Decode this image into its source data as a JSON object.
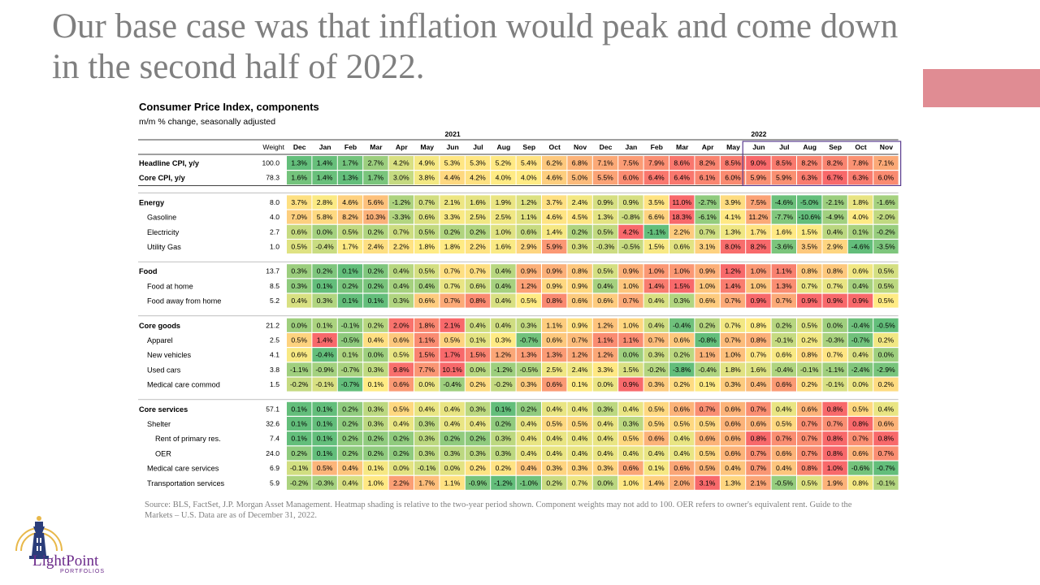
{
  "slide": {
    "title": "Our base case was that inflation would peak and come down in the second half of 2022.",
    "source": "Source: BLS, FactSet, J.P. Morgan Asset Management. Heatmap shading is relative to the two-year period shown. Component weights may not add to 100. OER refers to owner's equivalent rent. Guide to the Markets – U.S. Data are as of December 31, 2022.",
    "accent_color": "#e08c93",
    "logo": {
      "name": "LightPoint",
      "sub": "PORTFOLIOS",
      "color": "#6b2a8a"
    }
  },
  "chart_data": {
    "type": "table",
    "title": "Consumer Price Index, components",
    "subtitle": "m/m % change, seasonally adjusted",
    "weight_header": "Weight",
    "year_labels": [
      {
        "label": "2021",
        "col": 6
      },
      {
        "label": "2022",
        "col": 18
      }
    ],
    "months": [
      "Dec",
      "Jan",
      "Feb",
      "Mar",
      "Apr",
      "May",
      "Jun",
      "Jul",
      "Aug",
      "Sep",
      "Oct",
      "Nov",
      "Dec",
      "Jan",
      "Feb",
      "Mar",
      "Apr",
      "May",
      "Jun",
      "Jul",
      "Aug",
      "Sep",
      "Oct",
      "Nov"
    ],
    "highlight": {
      "from_col": 18,
      "to_col": 23,
      "rows": 2
    },
    "groups": [
      {
        "rows": [
          {
            "label": "Headline CPI, y/y",
            "weight": "100.0",
            "bold": true,
            "values": [
              1.3,
              1.4,
              1.7,
              2.7,
              4.2,
              4.9,
              5.3,
              5.3,
              5.2,
              5.4,
              6.2,
              6.8,
              7.1,
              7.5,
              7.9,
              8.6,
              8.2,
              8.5,
              9.0,
              8.5,
              8.2,
              8.2,
              7.8,
              7.1
            ]
          },
          {
            "label": "Core CPI, y/y",
            "weight": "78.3",
            "bold": true,
            "values": [
              1.6,
              1.4,
              1.3,
              1.7,
              3.0,
              3.8,
              4.4,
              4.2,
              4.0,
              4.0,
              4.6,
              5.0,
              5.5,
              6.0,
              6.4,
              6.4,
              6.1,
              6.0,
              5.9,
              5.9,
              6.3,
              6.7,
              6.3,
              6.0
            ]
          }
        ]
      },
      {
        "rows": [
          {
            "label": "Energy",
            "weight": "8.0",
            "bold": true,
            "indent": 0,
            "values": [
              3.7,
              2.8,
              4.6,
              5.6,
              -1.2,
              0.7,
              2.1,
              1.6,
              1.9,
              1.2,
              3.7,
              2.4,
              0.9,
              0.9,
              3.5,
              11.0,
              -2.7,
              3.9,
              7.5,
              -4.6,
              -5.0,
              -2.1,
              1.8,
              -1.6
            ]
          },
          {
            "label": "Gasoline",
            "weight": "4.0",
            "indent": 1,
            "values": [
              7.0,
              5.8,
              8.2,
              10.3,
              -3.3,
              0.6,
              3.3,
              2.5,
              2.5,
              1.1,
              4.6,
              4.5,
              1.3,
              -0.8,
              6.6,
              18.3,
              -6.1,
              4.1,
              11.2,
              -7.7,
              -10.6,
              -4.9,
              4.0,
              -2.0
            ]
          },
          {
            "label": "Electricity",
            "weight": "2.7",
            "indent": 1,
            "values": [
              0.6,
              0.0,
              0.5,
              0.2,
              0.7,
              0.5,
              0.2,
              0.2,
              1.0,
              0.6,
              1.4,
              0.2,
              0.5,
              4.2,
              -1.1,
              2.2,
              0.7,
              1.3,
              1.7,
              1.6,
              1.5,
              0.4,
              0.1,
              -0.2
            ]
          },
          {
            "label": "Utility Gas",
            "weight": "1.0",
            "indent": 1,
            "values": [
              0.5,
              -0.4,
              1.7,
              2.4,
              2.2,
              1.8,
              1.8,
              2.2,
              1.6,
              2.9,
              5.9,
              0.3,
              -0.3,
              -0.5,
              1.5,
              0.6,
              3.1,
              8.0,
              8.2,
              -3.6,
              3.5,
              2.9,
              -4.6,
              -3.5
            ]
          }
        ]
      },
      {
        "rows": [
          {
            "label": "Food",
            "weight": "13.7",
            "bold": true,
            "indent": 0,
            "values": [
              0.3,
              0.2,
              0.1,
              0.2,
              0.4,
              0.5,
              0.7,
              0.7,
              0.4,
              0.9,
              0.9,
              0.8,
              0.5,
              0.9,
              1.0,
              1.0,
              0.9,
              1.2,
              1.0,
              1.1,
              0.8,
              0.8,
              0.6,
              0.5
            ]
          },
          {
            "label": "Food at home",
            "weight": "8.5",
            "indent": 1,
            "values": [
              0.3,
              0.1,
              0.2,
              0.2,
              0.4,
              0.4,
              0.7,
              0.6,
              0.4,
              1.2,
              0.9,
              0.9,
              0.4,
              1.0,
              1.4,
              1.5,
              1.0,
              1.4,
              1.0,
              1.3,
              0.7,
              0.7,
              0.4,
              0.5
            ]
          },
          {
            "label": "Food away from home",
            "weight": "5.2",
            "indent": 1,
            "values": [
              0.4,
              0.3,
              0.1,
              0.1,
              0.3,
              0.6,
              0.7,
              0.8,
              0.4,
              0.5,
              0.8,
              0.6,
              0.6,
              0.7,
              0.4,
              0.3,
              0.6,
              0.7,
              0.9,
              0.7,
              0.9,
              0.9,
              0.9,
              0.5
            ]
          }
        ]
      },
      {
        "rows": [
          {
            "label": "Core goods",
            "weight": "21.2",
            "bold": true,
            "indent": 0,
            "values": [
              0.0,
              0.1,
              -0.1,
              0.2,
              2.0,
              1.8,
              2.1,
              0.4,
              0.4,
              0.3,
              1.1,
              0.9,
              1.2,
              1.0,
              0.4,
              -0.4,
              0.2,
              0.7,
              0.8,
              0.2,
              0.5,
              0.0,
              -0.4,
              -0.5
            ]
          },
          {
            "label": "Apparel",
            "weight": "2.5",
            "indent": 1,
            "values": [
              0.5,
              1.4,
              -0.5,
              0.4,
              0.6,
              1.1,
              0.5,
              0.1,
              0.3,
              -0.7,
              0.6,
              0.7,
              1.1,
              1.1,
              0.7,
              0.6,
              -0.8,
              0.7,
              0.8,
              -0.1,
              0.2,
              -0.3,
              -0.7,
              0.2
            ]
          },
          {
            "label": "New vehicles",
            "weight": "4.1",
            "indent": 1,
            "values": [
              0.6,
              -0.4,
              0.1,
              0.0,
              0.5,
              1.5,
              1.7,
              1.5,
              1.2,
              1.3,
              1.3,
              1.2,
              1.2,
              0.0,
              0.3,
              0.2,
              1.1,
              1.0,
              0.7,
              0.6,
              0.8,
              0.7,
              0.4,
              0.0
            ]
          },
          {
            "label": "Used cars",
            "weight": "3.8",
            "indent": 1,
            "values": [
              -1.1,
              -0.9,
              -0.7,
              0.3,
              9.8,
              7.7,
              10.1,
              0.0,
              -1.2,
              -0.5,
              2.5,
              2.4,
              3.3,
              1.5,
              -0.2,
              -3.8,
              -0.4,
              1.8,
              1.6,
              -0.4,
              -0.1,
              -1.1,
              -2.4,
              -2.9
            ]
          },
          {
            "label": "Medical care commod",
            "weight": "1.5",
            "indent": 1,
            "values": [
              -0.2,
              -0.1,
              -0.7,
              0.1,
              0.6,
              0.0,
              -0.4,
              0.2,
              -0.2,
              0.3,
              0.6,
              0.1,
              0.0,
              0.9,
              0.3,
              0.2,
              0.1,
              0.3,
              0.4,
              0.6,
              0.2,
              -0.1,
              0.0,
              0.2
            ]
          }
        ]
      },
      {
        "rows": [
          {
            "label": "Core services",
            "weight": "57.1",
            "bold": true,
            "indent": 0,
            "values": [
              0.1,
              0.1,
              0.2,
              0.3,
              0.5,
              0.4,
              0.4,
              0.3,
              0.1,
              0.2,
              0.4,
              0.4,
              0.3,
              0.4,
              0.5,
              0.6,
              0.7,
              0.6,
              0.7,
              0.4,
              0.6,
              0.8,
              0.5,
              0.4
            ]
          },
          {
            "label": "Shelter",
            "weight": "32.6",
            "indent": 1,
            "values": [
              0.1,
              0.1,
              0.2,
              0.3,
              0.4,
              0.3,
              0.4,
              0.4,
              0.2,
              0.4,
              0.5,
              0.5,
              0.4,
              0.3,
              0.5,
              0.5,
              0.5,
              0.6,
              0.6,
              0.5,
              0.7,
              0.7,
              0.8,
              0.6
            ]
          },
          {
            "label": "Rent of primary res.",
            "weight": "7.4",
            "indent": 2,
            "values": [
              0.1,
              0.1,
              0.2,
              0.2,
              0.2,
              0.3,
              0.2,
              0.2,
              0.3,
              0.4,
              0.4,
              0.4,
              0.4,
              0.5,
              0.6,
              0.4,
              0.6,
              0.6,
              0.8,
              0.7,
              0.7,
              0.8,
              0.7,
              0.8
            ]
          },
          {
            "label": "OER",
            "weight": "24.0",
            "indent": 2,
            "values": [
              0.2,
              0.1,
              0.2,
              0.2,
              0.2,
              0.3,
              0.3,
              0.3,
              0.3,
              0.4,
              0.4,
              0.4,
              0.4,
              0.4,
              0.4,
              0.4,
              0.5,
              0.6,
              0.7,
              0.6,
              0.7,
              0.8,
              0.6,
              0.7
            ]
          },
          {
            "label": "Medical care services",
            "weight": "6.9",
            "indent": 1,
            "values": [
              -0.1,
              0.5,
              0.4,
              0.1,
              0.0,
              -0.1,
              0.0,
              0.2,
              0.2,
              0.4,
              0.3,
              0.3,
              0.3,
              0.6,
              0.1,
              0.6,
              0.5,
              0.4,
              0.7,
              0.4,
              0.8,
              1.0,
              -0.6,
              -0.7
            ]
          },
          {
            "label": "Transportation services",
            "weight": "5.9",
            "indent": 1,
            "values": [
              -0.2,
              -0.3,
              0.4,
              1.0,
              2.2,
              1.7,
              1.1,
              -0.9,
              -1.2,
              -1.0,
              0.2,
              0.7,
              0.0,
              1.0,
              1.4,
              2.0,
              3.1,
              1.3,
              2.1,
              -0.5,
              0.5,
              1.9,
              0.8,
              -0.1
            ]
          }
        ]
      }
    ]
  }
}
